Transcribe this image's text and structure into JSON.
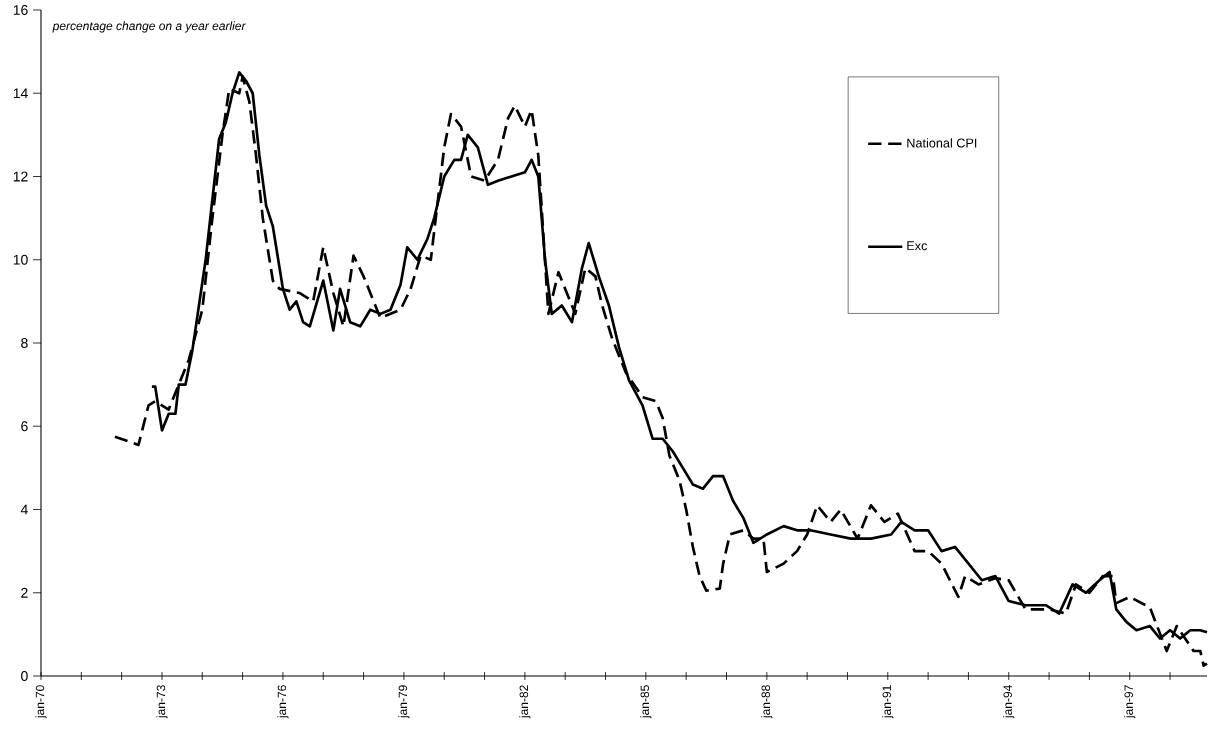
{
  "chart_data": {
    "type": "line",
    "ylabel": "percentage change on a year earlier",
    "xlim": [
      "1970-01",
      "1998-12"
    ],
    "xticks": [
      {
        "value": "1970-01",
        "label": "jan-70"
      },
      {
        "value": "1971-01",
        "label": null
      },
      {
        "value": "1972-01",
        "label": null
      },
      {
        "value": "1973-01",
        "label": "jan-73"
      },
      {
        "value": "1974-01",
        "label": null
      },
      {
        "value": "1975-01",
        "label": null
      },
      {
        "value": "1976-01",
        "label": "jan-76"
      },
      {
        "value": "1977-01",
        "label": null
      },
      {
        "value": "1978-01",
        "label": null
      },
      {
        "value": "1979-01",
        "label": "jan-79"
      },
      {
        "value": "1980-01",
        "label": null
      },
      {
        "value": "1981-01",
        "label": null
      },
      {
        "value": "1982-01",
        "label": "jan-82"
      },
      {
        "value": "1983-01",
        "label": null
      },
      {
        "value": "1984-01",
        "label": null
      },
      {
        "value": "1985-01",
        "label": "jan-85"
      },
      {
        "value": "1986-01",
        "label": null
      },
      {
        "value": "1987-01",
        "label": null
      },
      {
        "value": "1988-01",
        "label": "jan-88"
      },
      {
        "value": "1989-01",
        "label": null
      },
      {
        "value": "1990-01",
        "label": null
      },
      {
        "value": "1991-01",
        "label": "jan-91"
      },
      {
        "value": "1992-01",
        "label": null
      },
      {
        "value": "1993-01",
        "label": null
      },
      {
        "value": "1994-01",
        "label": "jan-94"
      },
      {
        "value": "1995-01",
        "label": null
      },
      {
        "value": "1996-01",
        "label": null
      },
      {
        "value": "1997-01",
        "label": "jan-97"
      },
      {
        "value": "1998-01",
        "label": null
      }
    ],
    "ylim": [
      0,
      16
    ],
    "yticks": [
      0,
      2,
      4,
      6,
      8,
      10,
      12,
      14,
      16
    ],
    "legend": "top right",
    "series": [
      {
        "name": "National CPI",
        "color": "#000000",
        "line_style": "dashed",
        "x": [
          "1971-11",
          "1972-06",
          "1972-09",
          "1972-11",
          "1973-03",
          "1973-06",
          "1973-09",
          "1974-01",
          "1974-04",
          "1974-07",
          "1974-09",
          "1974-12",
          "1975-01",
          "1975-03",
          "1975-05",
          "1975-07",
          "1975-10",
          "1975-12",
          "1976-06",
          "1976-10",
          "1977-01",
          "1977-04",
          "1977-07",
          "1977-10",
          "1978-01",
          "1978-06",
          "1978-12",
          "1979-03",
          "1979-06",
          "1979-09",
          "1980-01",
          "1980-03",
          "1980-06",
          "1980-09",
          "1981-01",
          "1981-05",
          "1981-08",
          "1981-10",
          "1982-01",
          "1982-03",
          "1982-05",
          "1982-08",
          "1982-11",
          "1983-01",
          "1983-04",
          "1983-07",
          "1983-10",
          "1983-12",
          "1984-03",
          "1984-07",
          "1984-12",
          "1985-04",
          "1985-06",
          "1985-08",
          "1985-11",
          "1986-01",
          "1986-03",
          "1986-05",
          "1986-07",
          "1986-11",
          "1986-12",
          "1987-02",
          "1987-06",
          "1987-09",
          "1987-12",
          "1988-01",
          "1988-06",
          "1988-10",
          "1989-01",
          "1989-04",
          "1989-08",
          "1989-11",
          "1990-04",
          "1990-08",
          "1990-12",
          "1991-04",
          "1991-09",
          "1992-01",
          "1992-05",
          "1992-10",
          "1992-12",
          "1993-04",
          "1993-09",
          "1994-01",
          "1994-06",
          "1995-01",
          "1995-06",
          "1995-09",
          "1996-01",
          "1996-05",
          "1996-08",
          "1996-09",
          "1997-01",
          "1997-07",
          "1997-12",
          "1998-03",
          "1998-08",
          "1998-10",
          "1998-11",
          "1998-12"
        ],
        "values": [
          5.75,
          5.55,
          6.5,
          6.6,
          6.4,
          7.0,
          7.6,
          8.8,
          11.0,
          13.0,
          14.1,
          14.0,
          14.4,
          13.8,
          12.5,
          11.0,
          9.5,
          9.3,
          9.2,
          9.0,
          10.3,
          9.2,
          8.4,
          10.1,
          9.6,
          8.6,
          8.8,
          9.3,
          10.1,
          10.0,
          12.7,
          13.5,
          13.2,
          12.0,
          11.9,
          12.4,
          13.4,
          13.7,
          13.2,
          13.6,
          12.5,
          8.7,
          9.7,
          9.3,
          8.7,
          9.8,
          9.6,
          8.9,
          8.1,
          7.3,
          6.7,
          6.6,
          6.2,
          5.3,
          4.7,
          4.0,
          3.1,
          2.4,
          2.05,
          2.1,
          2.7,
          3.4,
          3.5,
          3.3,
          3.3,
          2.5,
          2.7,
          3.0,
          3.4,
          4.1,
          3.7,
          4.0,
          3.3,
          4.1,
          3.7,
          3.9,
          3.0,
          3.0,
          2.7,
          1.9,
          2.4,
          2.2,
          2.35,
          2.3,
          1.6,
          1.6,
          1.5,
          2.2,
          2.0,
          2.4,
          2.4,
          1.75,
          1.9,
          1.65,
          0.6,
          1.2,
          0.6,
          0.6,
          0.25,
          0.3
        ]
      },
      {
        "name": "Exc",
        "color": "#000000",
        "line_style": "solid",
        "x": [
          "1972-10",
          "1972-11",
          "1973-01",
          "1973-03",
          "1973-05",
          "1973-06",
          "1973-08",
          "1973-10",
          "1974-02",
          "1974-06",
          "1974-08",
          "1974-10",
          "1974-12",
          "1975-02",
          "1975-04",
          "1975-06",
          "1975-08",
          "1975-10",
          "1976-01",
          "1976-03",
          "1976-05",
          "1976-07",
          "1976-09",
          "1977-01",
          "1977-04",
          "1977-06",
          "1977-09",
          "1977-12",
          "1978-03",
          "1978-06",
          "1978-09",
          "1978-12",
          "1979-02",
          "1979-05",
          "1979-08",
          "1979-10",
          "1980-01",
          "1980-04",
          "1980-06",
          "1980-08",
          "1980-11",
          "1981-02",
          "1981-05",
          "1981-09",
          "1982-01",
          "1982-03",
          "1982-05",
          "1982-07",
          "1982-09",
          "1982-12",
          "1983-03",
          "1983-06",
          "1983-08",
          "1983-11",
          "1984-02",
          "1984-05",
          "1984-08",
          "1984-12",
          "1985-03",
          "1985-06",
          "1985-09",
          "1985-12",
          "1986-03",
          "1986-06",
          "1986-09",
          "1986-12",
          "1987-03",
          "1987-06",
          "1987-09",
          "1988-01",
          "1988-06",
          "1988-10",
          "1989-02",
          "1989-08",
          "1990-02",
          "1990-08",
          "1991-02",
          "1991-05",
          "1991-09",
          "1992-01",
          "1992-05",
          "1992-09",
          "1993-01",
          "1993-05",
          "1993-09",
          "1994-01",
          "1994-06",
          "1994-12",
          "1995-04",
          "1995-08",
          "1995-12",
          "1996-04",
          "1996-07",
          "1996-09",
          "1996-12",
          "1997-03",
          "1997-07",
          "1997-10",
          "1998-01",
          "1998-04",
          "1998-07",
          "1998-10",
          "1998-12"
        ],
        "values": [
          6.95,
          6.95,
          5.9,
          6.3,
          6.3,
          7.0,
          7.0,
          7.8,
          10.0,
          12.9,
          13.3,
          14.0,
          14.5,
          14.3,
          14.0,
          12.5,
          11.3,
          10.8,
          9.3,
          8.8,
          9.0,
          8.5,
          8.4,
          9.5,
          8.3,
          9.3,
          8.5,
          8.4,
          8.8,
          8.7,
          8.8,
          9.4,
          10.3,
          10.0,
          10.5,
          11.0,
          12.0,
          12.4,
          12.4,
          13.0,
          12.7,
          11.8,
          11.9,
          12.0,
          12.1,
          12.4,
          12.0,
          10.0,
          8.7,
          8.9,
          8.5,
          9.8,
          10.4,
          9.6,
          8.9,
          7.9,
          7.1,
          6.5,
          5.7,
          5.7,
          5.4,
          5.0,
          4.6,
          4.5,
          4.8,
          4.8,
          4.2,
          3.8,
          3.2,
          3.4,
          3.6,
          3.5,
          3.5,
          3.4,
          3.3,
          3.3,
          3.4,
          3.7,
          3.5,
          3.5,
          3.0,
          3.1,
          2.7,
          2.3,
          2.4,
          1.8,
          1.7,
          1.7,
          1.5,
          2.2,
          2.0,
          2.3,
          2.5,
          1.6,
          1.3,
          1.1,
          1.2,
          0.9,
          1.1,
          0.9,
          1.1,
          1.1,
          1.05
        ]
      }
    ]
  }
}
